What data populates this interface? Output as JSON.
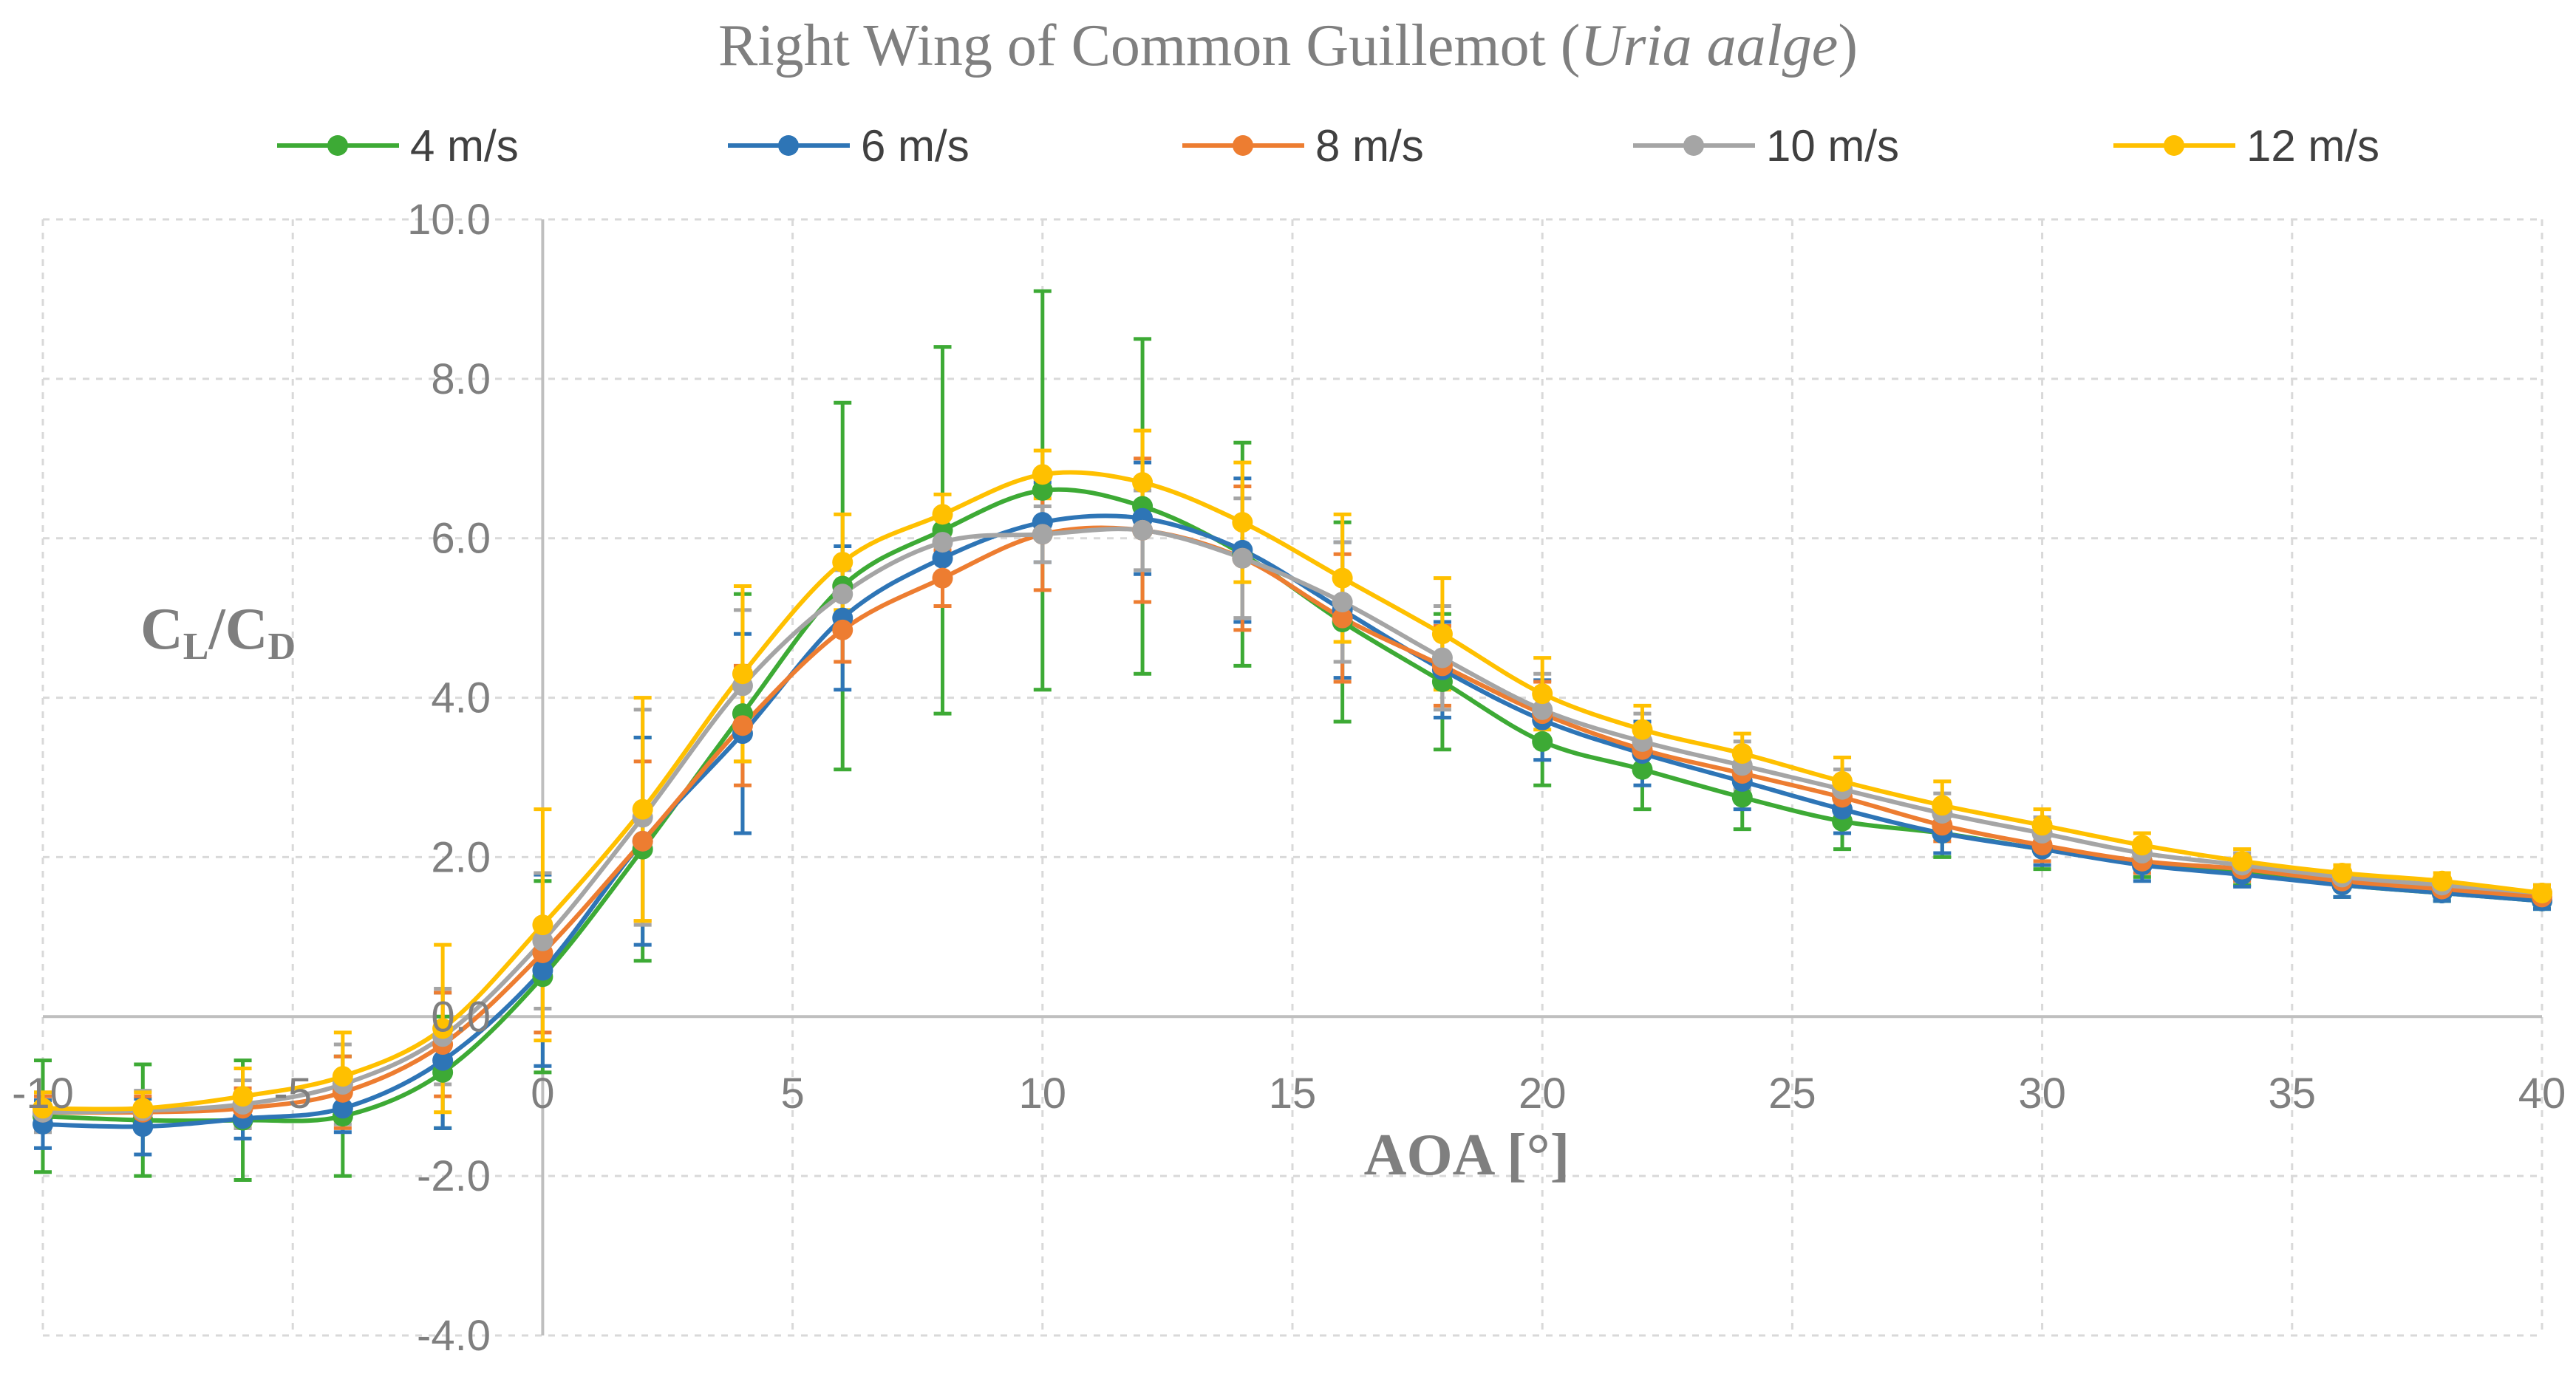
{
  "chart_data": {
    "type": "line",
    "title": {
      "prefix": "Right Wing of Common Guillemot (",
      "italic": "Uria aalge",
      "suffix": ")"
    },
    "xlabel": "AOA [°]",
    "ylabel": {
      "main": "C",
      "sub1": "L",
      "sep": "/C",
      "sub2": "D"
    },
    "xlim": [
      -10,
      40
    ],
    "ylim": [
      -4,
      10
    ],
    "x_ticks": [
      -10,
      -5,
      0,
      5,
      10,
      15,
      20,
      25,
      30,
      35,
      40
    ],
    "x_tick_labels": [
      "-10",
      "-5",
      "0",
      "5",
      "10",
      "15",
      "20",
      "25",
      "30",
      "35",
      "40"
    ],
    "y_ticks": [
      -4,
      -2,
      0,
      2,
      4,
      6,
      8,
      10
    ],
    "y_tick_labels": [
      "-4.0",
      "-2.0",
      "0.0",
      "2.0",
      "4.0",
      "6.0",
      "8.0",
      "10.0"
    ],
    "x_grid": [
      -10,
      -5,
      0,
      5,
      10,
      15,
      20,
      25,
      30,
      35,
      40
    ],
    "y_grid": [
      -4,
      -2,
      0,
      2,
      4,
      6,
      8,
      10
    ],
    "grid": true,
    "legend_position": "top",
    "x": [
      -10,
      -8,
      -6,
      -4,
      -2,
      0,
      2,
      4,
      6,
      8,
      10,
      12,
      14,
      16,
      18,
      20,
      22,
      24,
      26,
      28,
      30,
      32,
      34,
      36,
      38,
      40
    ],
    "series": [
      {
        "name": "4 m/s",
        "color": "#3daa35",
        "values": [
          -1.25,
          -1.3,
          -1.3,
          -1.25,
          -0.7,
          0.5,
          2.1,
          3.8,
          5.4,
          6.1,
          6.6,
          6.4,
          5.8,
          4.95,
          4.2,
          3.45,
          3.1,
          2.75,
          2.45,
          2.3,
          2.1,
          1.95,
          1.8,
          1.65,
          1.55,
          1.45
        ],
        "errors": [
          0.7,
          0.7,
          0.75,
          0.75,
          0.7,
          1.2,
          1.4,
          1.5,
          2.3,
          2.3,
          2.5,
          2.1,
          1.4,
          1.25,
          0.85,
          0.55,
          0.5,
          0.4,
          0.35,
          0.3,
          0.25,
          0.2,
          0.15,
          0.15,
          0.1,
          0.1
        ]
      },
      {
        "name": "6 m/s",
        "color": "#2e75b6",
        "values": [
          -1.35,
          -1.38,
          -1.28,
          -1.15,
          -0.55,
          0.58,
          2.2,
          3.55,
          5.0,
          5.75,
          6.2,
          6.25,
          5.85,
          5.1,
          4.35,
          3.72,
          3.3,
          2.95,
          2.6,
          2.3,
          2.1,
          1.9,
          1.78,
          1.65,
          1.55,
          1.45
        ],
        "errors": [
          0.3,
          0.35,
          0.25,
          0.3,
          0.85,
          1.2,
          1.3,
          1.25,
          0.9,
          0.6,
          0.5,
          0.7,
          0.9,
          0.85,
          0.6,
          0.5,
          0.4,
          0.35,
          0.3,
          0.25,
          0.2,
          0.2,
          0.15,
          0.15,
          0.1,
          0.1
        ]
      },
      {
        "name": "8 m/s",
        "color": "#ed7d31",
        "values": [
          -1.2,
          -1.2,
          -1.15,
          -0.95,
          -0.35,
          0.8,
          2.2,
          3.65,
          4.85,
          5.5,
          6.05,
          6.1,
          5.75,
          5.0,
          4.4,
          3.8,
          3.35,
          3.05,
          2.75,
          2.4,
          2.15,
          1.95,
          1.85,
          1.7,
          1.6,
          1.5
        ],
        "errors": [
          0.2,
          0.2,
          0.25,
          0.45,
          0.65,
          1.0,
          1.0,
          0.75,
          0.4,
          0.35,
          0.7,
          0.9,
          0.9,
          0.8,
          0.5,
          0.4,
          0.3,
          0.3,
          0.25,
          0.2,
          0.2,
          0.15,
          0.15,
          0.1,
          0.1,
          0.1
        ]
      },
      {
        "name": "10 m/s",
        "color": "#a5a5a5",
        "values": [
          -1.2,
          -1.18,
          -1.1,
          -0.85,
          -0.25,
          0.95,
          2.5,
          4.15,
          5.3,
          5.95,
          6.05,
          6.1,
          5.75,
          5.2,
          4.5,
          3.85,
          3.45,
          3.15,
          2.85,
          2.55,
          2.3,
          2.05,
          1.9,
          1.75,
          1.65,
          1.55
        ],
        "errors": [
          0.25,
          0.25,
          0.3,
          0.5,
          0.6,
          0.85,
          1.35,
          0.95,
          0.3,
          0.4,
          0.35,
          0.5,
          0.75,
          0.75,
          0.65,
          0.45,
          0.35,
          0.3,
          0.25,
          0.25,
          0.2,
          0.15,
          0.15,
          0.1,
          0.1,
          0.1
        ]
      },
      {
        "name": "12 m/s",
        "color": "#ffc000",
        "values": [
          -1.15,
          -1.15,
          -1.0,
          -0.75,
          -0.15,
          1.15,
          2.6,
          4.3,
          5.7,
          6.3,
          6.8,
          6.7,
          6.2,
          5.5,
          4.8,
          4.05,
          3.6,
          3.3,
          2.95,
          2.65,
          2.4,
          2.15,
          1.95,
          1.8,
          1.7,
          1.55
        ],
        "errors": [
          0.2,
          0.2,
          0.35,
          0.55,
          1.05,
          1.45,
          1.4,
          1.1,
          0.6,
          0.25,
          0.3,
          0.65,
          0.75,
          0.8,
          0.7,
          0.45,
          0.3,
          0.25,
          0.3,
          0.3,
          0.2,
          0.15,
          0.15,
          0.1,
          0.1,
          0.1
        ]
      }
    ]
  }
}
